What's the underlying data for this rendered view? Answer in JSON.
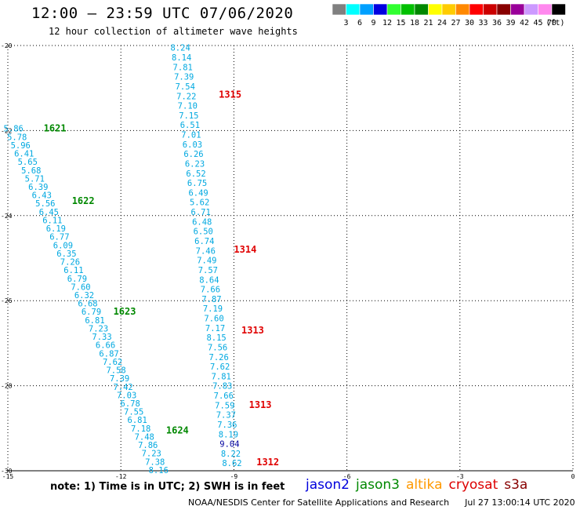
{
  "header": {
    "title": "12:00 – 23:59 UTC 07/06/2020",
    "subtitle": "12 hour collection of altimeter wave heights"
  },
  "legend": {
    "unit": "(ft)",
    "bins": [
      {
        "label": "3",
        "color": "#808080"
      },
      {
        "label": "6",
        "color": "#00ffff"
      },
      {
        "label": "9",
        "color": "#00a0ff"
      },
      {
        "label": "12",
        "color": "#0000e0"
      },
      {
        "label": "15",
        "color": "#30ff30"
      },
      {
        "label": "18",
        "color": "#00c000"
      },
      {
        "label": "21",
        "color": "#008800"
      },
      {
        "label": "24",
        "color": "#ffff00"
      },
      {
        "label": "27",
        "color": "#ffcc00"
      },
      {
        "label": "30",
        "color": "#ff8800"
      },
      {
        "label": "33",
        "color": "#ff0000"
      },
      {
        "label": "36",
        "color": "#cc0000"
      },
      {
        "label": "39",
        "color": "#880000"
      },
      {
        "label": "42",
        "color": "#990099"
      },
      {
        "label": "45",
        "color": "#cc99ff"
      },
      {
        "label": "70",
        "color": "#ff88ee"
      },
      {
        "label": "",
        "color": "#000000"
      }
    ]
  },
  "chart_data": {
    "type": "scatter",
    "title": "12:00 – 23:59 UTC 07/06/2020",
    "xlim": [
      -15,
      0
    ],
    "ylim": [
      -30,
      -20
    ],
    "xticks": [
      -15,
      -12,
      -9,
      -6,
      -3,
      0
    ],
    "yticks": [
      -20,
      -22,
      -24,
      -26,
      -28,
      -30
    ],
    "grid": true,
    "value_color": "#00a8e0",
    "tracks": [
      {
        "values": [
          "8.24",
          "8.14",
          "7.81",
          "7.39",
          "7.54",
          "7.22",
          "7.10",
          "7.15",
          "6.51",
          "7.01",
          "6.03",
          "6.26",
          "6.23",
          "6.52",
          "6.75",
          "6.49",
          "5.62",
          "6.71",
          "6.48",
          "6.50",
          "6.74",
          "7.46",
          "7.49",
          "7.57",
          "8.64",
          "7.66",
          "7.87",
          "7.19",
          "7.60",
          "7.17",
          "8.15",
          "7.56",
          "7.26",
          "7.62",
          "7.81",
          "7.83",
          "7.66",
          "7.59",
          "7.37",
          "7.36",
          "8.19",
          "9.04",
          "8.22",
          "8.62"
        ],
        "start": {
          "x": -10.42,
          "y": -20.05
        },
        "end": {
          "x": -9.05,
          "y": -29.82
        },
        "highlight": {
          "9.04": "#0000a0"
        }
      },
      {
        "values": [
          "5.86",
          "5.78",
          "5.96",
          "6.41",
          "5.65",
          "5.68",
          "5.71",
          "6.39",
          "6.43",
          "5.56",
          "6.45",
          "6.11",
          "6.19",
          "6.77",
          "6.09",
          "6.35",
          "7.26",
          "6.11",
          "6.79",
          "7.60",
          "6.32",
          "6.68",
          "6.79",
          "6.81",
          "7.23",
          "7.33",
          "6.66",
          "6.87",
          "7.62",
          "7.58",
          "7.39",
          "7.42",
          "7.03",
          "6.78",
          "7.55",
          "6.81",
          "7.18",
          "7.48",
          "7.86",
          "7.23",
          "7.38",
          "8.16"
        ],
        "start": {
          "x": -14.85,
          "y": -21.95
        },
        "end": {
          "x": -11.0,
          "y": -29.98
        }
      }
    ],
    "time_labels": [
      {
        "label": "1315",
        "x": -9.4,
        "y": -21.15,
        "color": "#e00000"
      },
      {
        "label": "1314",
        "x": -9.0,
        "y": -24.8,
        "color": "#e00000"
      },
      {
        "label": "1313",
        "x": -8.8,
        "y": -26.7,
        "color": "#e00000"
      },
      {
        "label": "1313",
        "x": -8.6,
        "y": -28.45,
        "color": "#e00000"
      },
      {
        "label": "1312",
        "x": -8.4,
        "y": -29.8,
        "color": "#e00000"
      },
      {
        "label": "1621",
        "x": -14.05,
        "y": -21.95,
        "color": "#008800"
      },
      {
        "label": "1622",
        "x": -13.3,
        "y": -23.65,
        "color": "#008800"
      },
      {
        "label": "1623",
        "x": -12.2,
        "y": -26.25,
        "color": "#008800"
      },
      {
        "label": "1624",
        "x": -10.8,
        "y": -29.05,
        "color": "#008800"
      }
    ]
  },
  "footer": {
    "note": "note: 1) Time is in UTC; 2) SWH is in feet",
    "satellites": [
      {
        "name": "jason2",
        "color": "#0000dd"
      },
      {
        "name": "jason3",
        "color": "#008800"
      },
      {
        "name": "altika",
        "color": "#ff9900"
      },
      {
        "name": "cryosat",
        "color": "#dd0000"
      },
      {
        "name": "s3a",
        "color": "#880000"
      }
    ],
    "credit": "NOAA/NESDIS Center for Satellite Applications and Research",
    "timestamp": "Jul 27 13:00:14 UTC 2020"
  }
}
